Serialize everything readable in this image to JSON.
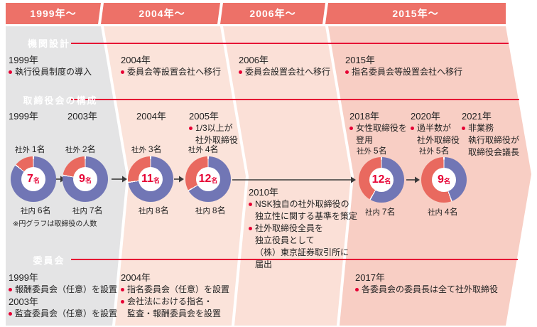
{
  "header": {
    "tabs": [
      {
        "label": "1999年〜"
      },
      {
        "label": "2004年〜"
      },
      {
        "label": "2006年〜"
      },
      {
        "label": "2015年〜"
      }
    ]
  },
  "badges": {
    "organ": "機関設計",
    "board": "取締役会の構成",
    "committee": "委員会"
  },
  "entries": [
    {
      "lines": [
        {
          "k": "y",
          "t": "1999年"
        },
        {
          "k": "b",
          "t": "執行役員制度の導入"
        }
      ]
    },
    {
      "lines": [
        {
          "k": "y",
          "t": "2004年"
        },
        {
          "k": "b",
          "t": "委員会等設置会社へ移行"
        }
      ]
    },
    {
      "lines": [
        {
          "k": "y",
          "t": "2006年"
        },
        {
          "k": "b",
          "t": "委員会設置会社へ移行"
        }
      ]
    },
    {
      "lines": [
        {
          "k": "y",
          "t": "2015年"
        },
        {
          "k": "b",
          "t": "指名委員会等設置会社へ移行"
        }
      ]
    },
    {
      "lines": [
        {
          "k": "y",
          "t": "1999年"
        }
      ]
    },
    {
      "lines": [
        {
          "k": "y",
          "t": "2003年"
        }
      ]
    },
    {
      "lines": [
        {
          "k": "y",
          "t": "2004年"
        }
      ]
    },
    {
      "lines": [
        {
          "k": "y",
          "t": "2005年"
        },
        {
          "k": "b",
          "t": "1/3以上が"
        },
        {
          "k": "c",
          "t": "社外取締役"
        }
      ]
    },
    {
      "lines": [
        {
          "k": "y",
          "t": "2010年"
        },
        {
          "k": "b",
          "t": "NSK独自の社外取締役の"
        },
        {
          "k": "c",
          "t": "独立性に関する基準を策定"
        },
        {
          "k": "b",
          "t": "社外取締役全員を"
        },
        {
          "k": "c",
          "t": "独立役員として"
        },
        {
          "k": "c",
          "t": "（株）東京証券取引所に"
        },
        {
          "k": "c",
          "t": "届出"
        }
      ]
    },
    {
      "lines": [
        {
          "k": "y",
          "t": "2018年"
        },
        {
          "k": "b",
          "t": "女性取締役を"
        },
        {
          "k": "c",
          "t": "登用"
        }
      ]
    },
    {
      "lines": [
        {
          "k": "y",
          "t": "2020年"
        },
        {
          "k": "b",
          "t": "過半数が"
        },
        {
          "k": "c",
          "t": "社外取締役"
        }
      ]
    },
    {
      "lines": [
        {
          "k": "y",
          "t": "2021年"
        },
        {
          "k": "b",
          "t": "非業務"
        },
        {
          "k": "c",
          "t": "執行取締役が"
        },
        {
          "k": "c",
          "t": "取締役会議長"
        }
      ]
    },
    {
      "lines": [
        {
          "k": "y",
          "t": "1999年"
        },
        {
          "k": "b",
          "t": "報酬委員会（任意）を設置"
        },
        {
          "k": "y",
          "t": "2003年"
        },
        {
          "k": "b",
          "t": "監査委員会（任意）を設置"
        }
      ]
    },
    {
      "lines": [
        {
          "k": "y",
          "t": "2004年"
        },
        {
          "k": "b",
          "t": "指名委員会（任意）を設置"
        },
        {
          "k": "b",
          "t": "会社法における指名・"
        },
        {
          "k": "c",
          "t": "監査・報酬委員会を設置"
        }
      ]
    },
    {
      "lines": [
        {
          "k": "y",
          "t": "2017年"
        },
        {
          "k": "b",
          "t": "各委員会の委員長は全て社外取締役"
        }
      ]
    }
  ],
  "note": "※円グラフは取締役の人数",
  "chart_data": {
    "type": "pie",
    "title": "取締役会の構成（円グラフは取締役の人数）",
    "legend": [
      "社外",
      "社内"
    ],
    "donuts": [
      {
        "total": 7,
        "outside": 1,
        "inside": 6,
        "center_num": "7",
        "center_unit": "名",
        "outside_label": "社外",
        "outside_value": "1名",
        "inside_label": "社内",
        "inside_value": "6名"
      },
      {
        "total": 9,
        "outside": 2,
        "inside": 7,
        "center_num": "9",
        "center_unit": "名",
        "outside_label": "社外",
        "outside_value": "2名",
        "inside_label": "社内",
        "inside_value": "7名"
      },
      {
        "total": 11,
        "outside": 3,
        "inside": 8,
        "center_num": "11",
        "center_unit": "名",
        "outside_label": "社外",
        "outside_value": "3名",
        "inside_label": "社内",
        "inside_value": "8名"
      },
      {
        "total": 12,
        "outside": 4,
        "inside": 8,
        "center_num": "12",
        "center_unit": "名",
        "outside_label": "社外",
        "outside_value": "4名",
        "inside_label": "社内",
        "inside_value": "8名"
      },
      {
        "total": 12,
        "outside": 5,
        "inside": 7,
        "center_num": "12",
        "center_unit": "名",
        "outside_label": "社外",
        "outside_value": "5名",
        "inside_label": "社内",
        "inside_value": "7名"
      },
      {
        "total": 9,
        "outside": 5,
        "inside": 4,
        "center_num": "9",
        "center_unit": "名",
        "outside_label": "社外",
        "outside_value": "5名",
        "inside_label": "社内",
        "inside_value": "4名"
      }
    ]
  },
  "colors": {
    "accent": "#e60033",
    "header": "#ed7168",
    "band_1999": "#e4e4e5",
    "band_2004": "#fbe3da",
    "band_2006": "#fbe0d7",
    "band_2015": "#f8cec4",
    "donut_outside": "#e9695f",
    "donut_inside": "#7176b5",
    "arrow": "#3a3a3a",
    "number_red": "#e60033"
  }
}
